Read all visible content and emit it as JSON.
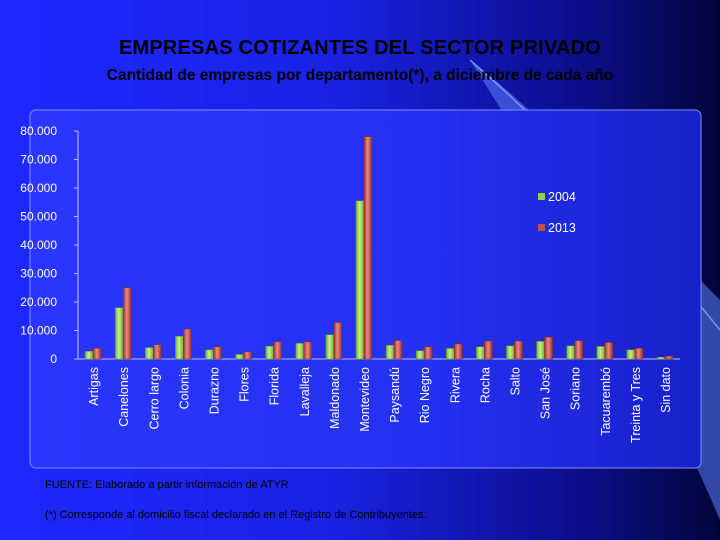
{
  "slide": {
    "title": "EMPRESAS COTIZANTES DEL SECTOR PRIVADO",
    "subtitle": "Cantidad de empresas por departamento(*), a diciembre de cada año",
    "source_note": "FUENTE: Elaborado a partir información de ATYR",
    "footnote": "(*) Corresponde al domicilio fiscal declarado en el Registro de Contribuyentes."
  },
  "colors": {
    "background": "#1a22e6",
    "series_2004": "#8fd14f",
    "series_2013": "#c0504d"
  },
  "chart_data": {
    "type": "bar",
    "title": "",
    "xlabel": "",
    "ylabel": "",
    "ylim": [
      0,
      80000
    ],
    "y_ticks": [
      "0",
      "10.000",
      "20.000",
      "30.000",
      "40.000",
      "50.000",
      "60.000",
      "70.000",
      "80.000"
    ],
    "grid": false,
    "legend_position": "right",
    "categories": [
      "Artigas",
      "Canelones",
      "Cerro largo",
      "Colonia",
      "Durazno",
      "Flores",
      "Florida",
      "Lavalleja",
      "Maldonado",
      "Montevideo",
      "Paysandú",
      "Rio Negro",
      "Rivera",
      "Rocha",
      "Salto",
      "San José",
      "Soriano",
      "Tacuarembó",
      "Treinta y Tres",
      "Sin dato"
    ],
    "series": [
      {
        "name": "2004",
        "values": [
          2700,
          18000,
          4000,
          8000,
          3200,
          1600,
          4500,
          5500,
          8500,
          55500,
          4800,
          2900,
          3700,
          4300,
          4600,
          6200,
          4600,
          4400,
          3200,
          600
        ]
      },
      {
        "name": "2013",
        "values": [
          3800,
          25000,
          5000,
          10500,
          4300,
          2500,
          6000,
          6000,
          12800,
          78000,
          6500,
          4300,
          5300,
          6300,
          6300,
          7700,
          6400,
          5800,
          3800,
          1000
        ]
      }
    ]
  }
}
